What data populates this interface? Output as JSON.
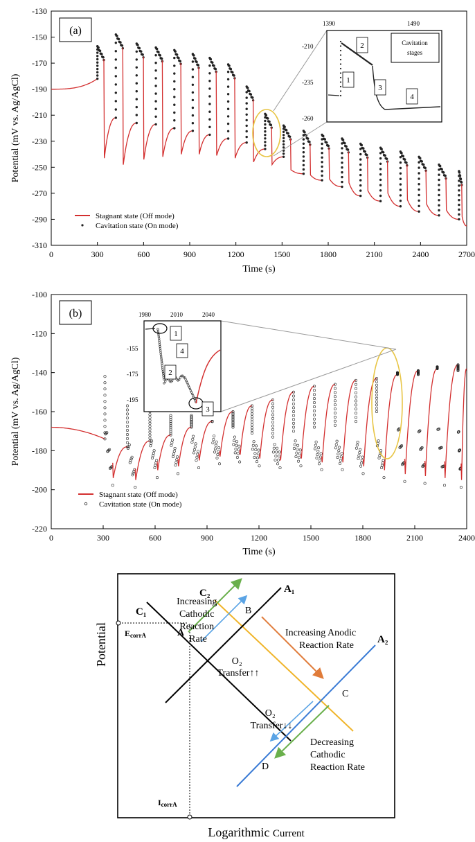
{
  "chart_data": [
    {
      "type": "line",
      "panel_label": "(a)",
      "xlabel": "Time (s)",
      "ylabel": "Potential (mV vs. Ag/AgCl)",
      "xlim": [
        0,
        2700
      ],
      "ylim": [
        -310,
        -130
      ],
      "xticks": [
        "0",
        "300",
        "600",
        "900",
        "1200",
        "1500",
        "1800",
        "2100",
        "2400",
        "2700"
      ],
      "yticks": [
        "-130",
        "-150",
        "-170",
        "-190",
        "-210",
        "-230",
        "-250",
        "-270",
        "-290",
        "-310"
      ],
      "legend_position": "bottom-left",
      "series": [
        {
          "name": "Stagnant state (Off mode)",
          "color": "#d32f2f",
          "style": "line"
        },
        {
          "name": "Cavitation state (On mode)",
          "color": "#222222",
          "style": "markers"
        }
      ],
      "cycles": [
        {
          "t": 300,
          "peak": -157,
          "trough": -243,
          "end": -212
        },
        {
          "t": 420,
          "peak": -148,
          "trough": -248,
          "end": -216
        },
        {
          "t": 555,
          "peak": -155,
          "trough": -244,
          "end": -217
        },
        {
          "t": 680,
          "peak": -158,
          "trough": -242,
          "end": -220
        },
        {
          "t": 800,
          "peak": -160,
          "trough": -240,
          "end": -222
        },
        {
          "t": 920,
          "peak": -163,
          "trough": -240,
          "end": -225
        },
        {
          "t": 1030,
          "peak": -166,
          "trough": -241,
          "end": -228
        },
        {
          "t": 1150,
          "peak": -171,
          "trough": -243,
          "end": -231
        },
        {
          "t": 1270,
          "peak": -188,
          "trough": -246,
          "end": -236
        },
        {
          "t": 1390,
          "peak": -209,
          "trough": -248,
          "end": -242
        },
        {
          "t": 1510,
          "peak": -218,
          "trough": -252,
          "end": -255
        },
        {
          "t": 1640,
          "peak": -222,
          "trough": -256,
          "end": -260
        },
        {
          "t": 1760,
          "peak": -225,
          "trough": -259,
          "end": -265
        },
        {
          "t": 1890,
          "peak": -228,
          "trough": -262,
          "end": -272
        },
        {
          "t": 2010,
          "peak": -232,
          "trough": -268,
          "end": -276
        },
        {
          "t": 2140,
          "peak": -235,
          "trough": -270,
          "end": -280
        },
        {
          "t": 2270,
          "peak": -238,
          "trough": -275,
          "end": -284
        },
        {
          "t": 2390,
          "peak": -242,
          "trough": -278,
          "end": -287
        },
        {
          "t": 2520,
          "peak": -248,
          "trough": -283,
          "end": -290
        },
        {
          "t": 2650,
          "peak": -253,
          "trough": -288,
          "end": -295
        }
      ],
      "inset": {
        "title": "Cavitation stages",
        "xticks": [
          "1390",
          "1490"
        ],
        "yticks": [
          "-210",
          "-235",
          "-260"
        ],
        "stages": [
          "1",
          "2",
          "3",
          "4"
        ]
      }
    },
    {
      "type": "line",
      "panel_label": "(b)",
      "xlabel": "Time (s)",
      "ylabel": "Potential (mV vs. Ag/AgCl)",
      "xlim": [
        0,
        2400
      ],
      "ylim": [
        -220,
        -100
      ],
      "xticks": [
        "0",
        "300",
        "600",
        "900",
        "1200",
        "1500",
        "1800",
        "2100",
        "2400"
      ],
      "yticks": [
        "-100",
        "-120",
        "-140",
        "-160",
        "-180",
        "-200",
        "-220"
      ],
      "legend_position": "bottom-left",
      "series": [
        {
          "name": "Stagnant state (Off mode)",
          "color": "#d32f2f",
          "style": "line"
        },
        {
          "name": "Cavitation state (On mode)",
          "color": "#222222",
          "style": "open-markers"
        }
      ],
      "cycles": [
        {
          "t": 310,
          "peak": -142,
          "trough": -194,
          "end": -178
        },
        {
          "t": 440,
          "peak": -157,
          "trough": -195,
          "end": -175
        },
        {
          "t": 570,
          "peak": -160,
          "trough": -190,
          "end": -172
        },
        {
          "t": 690,
          "peak": -162,
          "trough": -188,
          "end": -168
        },
        {
          "t": 810,
          "peak": -162,
          "trough": -185,
          "end": -165
        },
        {
          "t": 930,
          "peak": -165,
          "trough": -183,
          "end": -160
        },
        {
          "t": 1050,
          "peak": -168,
          "trough": -182,
          "end": -157
        },
        {
          "t": 1160,
          "peak": -171,
          "trough": -184,
          "end": -154
        },
        {
          "t": 1280,
          "peak": -173,
          "trough": -185,
          "end": -150
        },
        {
          "t": 1400,
          "peak": -170,
          "trough": -184,
          "end": -147
        },
        {
          "t": 1520,
          "peak": -168,
          "trough": -186,
          "end": -146
        },
        {
          "t": 1640,
          "peak": -167,
          "trough": -186,
          "end": -144
        },
        {
          "t": 1760,
          "peak": -165,
          "trough": -188,
          "end": -143
        },
        {
          "t": 1880,
          "peak": -160,
          "trough": -190,
          "end": -141
        },
        {
          "t": 2000,
          "peak": -140,
          "trough": -192,
          "end": -139
        },
        {
          "t": 2120,
          "peak": -141,
          "trough": -193,
          "end": -138
        },
        {
          "t": 2230,
          "peak": -137,
          "trough": -194,
          "end": -136
        },
        {
          "t": 2350,
          "peak": -139,
          "trough": -195,
          "end": -138
        }
      ],
      "inset": {
        "xticks": [
          "1980",
          "2010",
          "2040"
        ],
        "yticks": [
          "-155",
          "-175",
          "-195"
        ],
        "stages": [
          "1",
          "2",
          "3",
          "4"
        ]
      }
    }
  ],
  "diagram": {
    "ylabel": "Potential",
    "xlabel": "Logarithmic Current",
    "c2": "C₂",
    "a1": "A₁",
    "c1": "C₁",
    "a2": "A₂",
    "point_a": "A",
    "point_b": "B",
    "point_c": "C",
    "point_d": "D",
    "ecorr": "EcorrA",
    "icorr": "IcorrA",
    "increasing_cathodic": [
      "Increasing",
      "Cathodic",
      "Reaction",
      "Rate"
    ],
    "increasing_anodic": [
      "Increasing Anodic",
      "Reaction Rate"
    ],
    "o2_up": [
      "O₂",
      "Transfer↑↑"
    ],
    "o2_down": [
      "O₂",
      "Transfer↓↓"
    ],
    "decreasing_cathodic": [
      "Decreasing",
      "Cathodic",
      "Reaction Rate"
    ]
  },
  "colors": {
    "stagnant": "#d32f2f",
    "cavitation": "#222222",
    "highlight": "#e8c545",
    "yellow_line": "#f0b429",
    "blue_line": "#3a7bd5",
    "green_arrow": "#6ab04c",
    "orange_arrow": "#e07b39",
    "lightblue_arrow": "#5ba4e5"
  }
}
